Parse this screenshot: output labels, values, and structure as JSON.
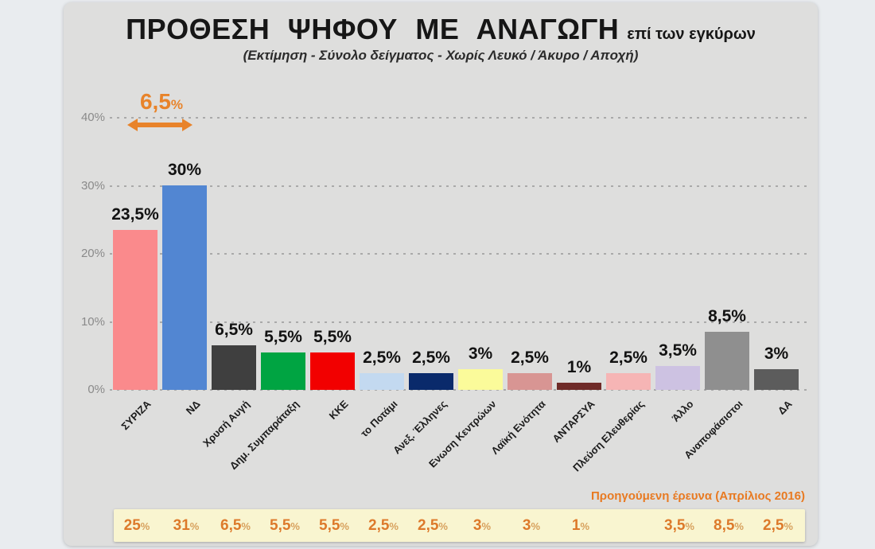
{
  "title": {
    "main": "ΠΡΟΘΕΣΗ ΨΗΦΟΥ ΜΕ ΑΝΑΓΩΓΗ",
    "suffix": "επί των εγκύρων",
    "subtitle": "(Εκτίμηση - Σύνολο δείγματος - Χωρίς Λευκό / Άκυρο / Αποχή)"
  },
  "gap_annotation": {
    "value": "6,5",
    "percent_sign": "%"
  },
  "y_axis": {
    "ticks": [
      {
        "pct": 0,
        "label": "0%"
      },
      {
        "pct": 10,
        "label": "10%"
      },
      {
        "pct": 20,
        "label": "20%"
      },
      {
        "pct": 30,
        "label": "30%"
      },
      {
        "pct": 40,
        "label": "40%"
      }
    ]
  },
  "footer": {
    "label": "Προηγούμενη έρευνα (Απρίλιος 2016)"
  },
  "colors": {
    "accent_orange": "#E8832A",
    "footer_text": "#E87A22",
    "footer_number": "#DD7A2B",
    "footer_percent": "#D7A05C",
    "strip_bg": "#F9F5D0",
    "panel_bg": "#DEDEDD",
    "page_bg": "#E9ECEF"
  },
  "chart_data": {
    "type": "bar",
    "title": "ΠΡΟΘΕΣΗ ΨΗΦΟΥ ΜΕ ΑΝΑΓΩΓΗ επί των εγκύρων",
    "subtitle": "(Εκτίμηση - Σύνολο δείγματος - Χωρίς Λευκό / Άκυρο / Αποχή)",
    "xlabel": "",
    "ylabel": "",
    "ylim": [
      0,
      40
    ],
    "gridlines_pct": [
      0,
      10,
      20,
      30,
      40
    ],
    "grid": "dotted horizontal",
    "categories": [
      "ΣΥΡΙΖΑ",
      "ΝΔ",
      "Χρυσή Αυγή",
      "Δημ. Συμπαράταξη",
      "ΚΚΕ",
      "το Ποτάμι",
      "Ανεξ. Έλληνες",
      "Ενωση Κεντρώων",
      "Λαϊκή Ενότητα",
      "ΑΝΤΑΡΣΥΑ",
      "Πλεύση Ελευθερίας",
      "Άλλο",
      "Αναποφάσιστοι",
      "ΔΑ"
    ],
    "values": [
      23.5,
      30,
      6.5,
      5.5,
      5.5,
      2.5,
      2.5,
      3,
      2.5,
      1,
      2.5,
      3.5,
      8.5,
      3
    ],
    "value_labels": [
      "23,5%",
      "30%",
      "6,5%",
      "5,5%",
      "5,5%",
      "2,5%",
      "2,5%",
      "3%",
      "2,5%",
      "1%",
      "2,5%",
      "3,5%",
      "8,5%",
      "3%"
    ],
    "bar_colors": [
      "#FA8A8C",
      "#5286D2",
      "#3F3F3F",
      "#00A442",
      "#F20000",
      "#C3D9F0",
      "#0A2A6B",
      "#FBFB9A",
      "#D89593",
      "#6F2B28",
      "#F6B5B5",
      "#CDC2E2",
      "#8F8F8F",
      "#5C5C5C"
    ],
    "annotation": {
      "text": "6,5%",
      "meaning": "difference between ΝΔ and ΣΥΡΙΖΑ"
    },
    "previous_survey": {
      "label": "Προηγούμενη έρευνα (Απρίλιος 2016)",
      "values": [
        25,
        31,
        6.5,
        5.5,
        5.5,
        2.5,
        2.5,
        3,
        3,
        1,
        null,
        3.5,
        8.5,
        2.5
      ],
      "value_labels": [
        "25",
        "31",
        "6,5",
        "5,5",
        "5,5",
        "2,5",
        "2,5",
        "3",
        "3",
        "1",
        "",
        "3,5",
        "8,5",
        "2,5"
      ]
    }
  }
}
